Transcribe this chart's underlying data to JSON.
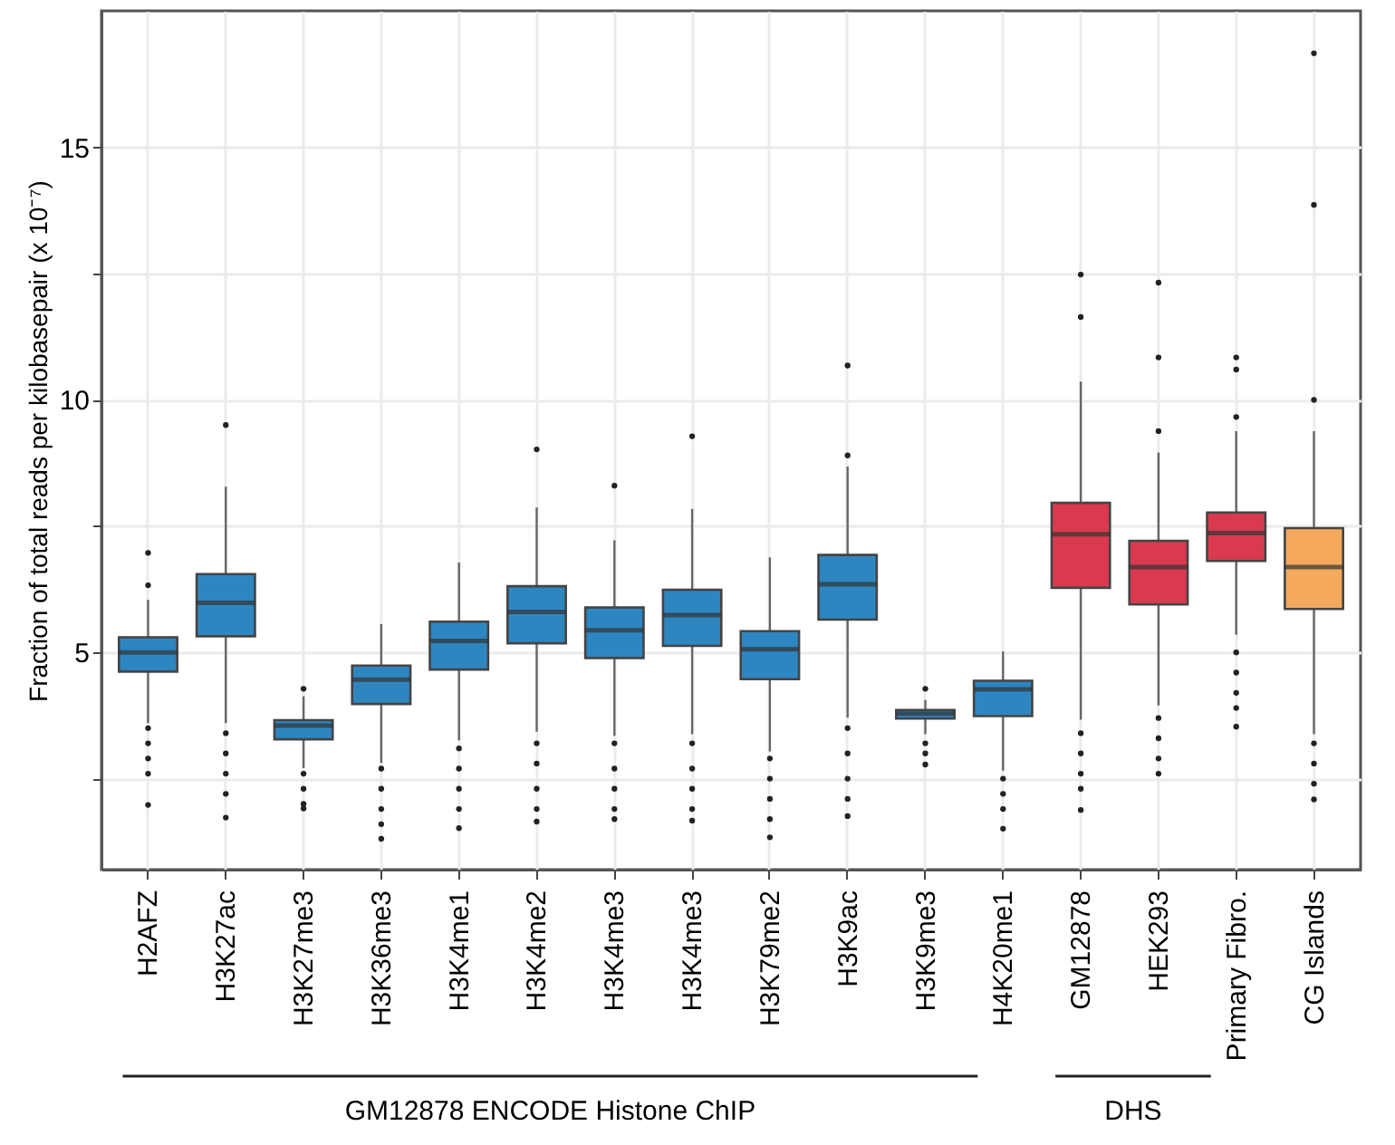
{
  "chart_data": {
    "type": "box",
    "ylabel": "Fraction of total reads per kilobasepair (x 10⁻⁷)",
    "categories": [
      "H2AFZ",
      "H3K27ac",
      "H3K27me3",
      "H3K36me3",
      "H3K4me1",
      "H3K4me2",
      "H3K4me3",
      "H3K4me3",
      "H3K79me2",
      "H3K9ac",
      "H3K9me3",
      "H4K20me1",
      "GM12878",
      "HEK293",
      "Primary Fibro.",
      "CG Islands"
    ],
    "colors": [
      "#2e86c1",
      "#2e86c1",
      "#2e86c1",
      "#2e86c1",
      "#2e86c1",
      "#2e86c1",
      "#2e86c1",
      "#2e86c1",
      "#2e86c1",
      "#2e86c1",
      "#2e86c1",
      "#2e86c1",
      "#d93a50",
      "#d93a50",
      "#d93a50",
      "#f5a95c"
    ],
    "boxes": [
      {
        "low": 3.6,
        "q1": 4.62,
        "median": 5.0,
        "q3": 5.3,
        "high": 6.04,
        "outliers": [
          6.97,
          6.33,
          3.5,
          3.2,
          2.9,
          2.6,
          1.98
        ]
      },
      {
        "low": 3.6,
        "q1": 5.32,
        "median": 5.98,
        "q3": 6.55,
        "high": 8.28,
        "outliers": [
          9.5,
          3.4,
          3.0,
          2.6,
          2.2,
          1.73
        ]
      },
      {
        "low": 2.71,
        "q1": 3.28,
        "median": 3.55,
        "q3": 3.66,
        "high": 4.13,
        "outliers": [
          4.28,
          2.6,
          2.3,
          2.0,
          1.91
        ]
      },
      {
        "low": 2.81,
        "q1": 3.98,
        "median": 4.46,
        "q3": 4.74,
        "high": 5.56,
        "outliers": [
          2.7,
          2.3,
          1.9,
          1.6,
          1.31
        ]
      },
      {
        "low": 3.26,
        "q1": 4.66,
        "median": 5.23,
        "q3": 5.61,
        "high": 6.78,
        "outliers": [
          3.1,
          2.7,
          2.3,
          1.9,
          1.52
        ]
      },
      {
        "low": 3.43,
        "q1": 5.18,
        "median": 5.8,
        "q3": 6.31,
        "high": 7.87,
        "outliers": [
          9.02,
          3.2,
          2.8,
          2.3,
          1.9,
          1.65
        ]
      },
      {
        "low": 3.35,
        "q1": 4.89,
        "median": 5.44,
        "q3": 5.89,
        "high": 7.22,
        "outliers": [
          8.3,
          3.2,
          2.7,
          2.3,
          1.9,
          1.7
        ]
      },
      {
        "low": 3.38,
        "q1": 5.13,
        "median": 5.74,
        "q3": 6.24,
        "high": 7.84,
        "outliers": [
          9.28,
          3.2,
          2.7,
          2.3,
          1.9,
          1.67
        ]
      },
      {
        "low": 3.04,
        "q1": 4.47,
        "median": 5.06,
        "q3": 5.42,
        "high": 6.88,
        "outliers": [
          2.9,
          2.5,
          2.1,
          1.7,
          1.34
        ]
      },
      {
        "low": 3.71,
        "q1": 5.65,
        "median": 6.35,
        "q3": 6.93,
        "high": 8.68,
        "outliers": [
          8.9,
          10.68,
          3.5,
          3.0,
          2.5,
          2.1,
          1.76
        ]
      },
      {
        "low": 3.38,
        "q1": 3.69,
        "median": 3.79,
        "q3": 3.86,
        "high": 4.06,
        "outliers": [
          4.28,
          3.2,
          3.0,
          2.78
        ]
      },
      {
        "low": 2.66,
        "q1": 3.74,
        "median": 4.27,
        "q3": 4.44,
        "high": 5.02,
        "outliers": [
          2.5,
          2.2,
          1.9,
          1.51
        ]
      },
      {
        "low": 3.67,
        "q1": 6.28,
        "median": 7.34,
        "q3": 7.96,
        "high": 10.36,
        "outliers": [
          11.64,
          12.48,
          3.4,
          3.0,
          2.6,
          2.3,
          1.88
        ]
      },
      {
        "low": 3.95,
        "q1": 5.95,
        "median": 6.69,
        "q3": 7.21,
        "high": 8.96,
        "outliers": [
          9.38,
          10.84,
          12.32,
          3.7,
          3.3,
          2.9,
          2.6
        ]
      },
      {
        "low": 5.35,
        "q1": 6.81,
        "median": 7.36,
        "q3": 7.77,
        "high": 9.38,
        "outliers": [
          9.66,
          10.6,
          10.84,
          5.0,
          4.6,
          4.2,
          3.9,
          3.53
        ]
      },
      {
        "low": 3.38,
        "q1": 5.86,
        "median": 6.69,
        "q3": 7.46,
        "high": 9.38,
        "outliers": [
          10.0,
          13.86,
          16.86,
          3.2,
          2.8,
          2.4,
          2.09
        ]
      }
    ],
    "ylim": [
      0.7,
      17.7
    ],
    "yticks": [
      {
        "value": 2.5,
        "label": null
      },
      5,
      {
        "value": 7.5,
        "label": null
      },
      10,
      {
        "value": 12.5,
        "label": null
      },
      15
    ],
    "grid": true,
    "annotations": [
      "GM12878 ENCODE Histone ChIP",
      "DHS"
    ]
  }
}
